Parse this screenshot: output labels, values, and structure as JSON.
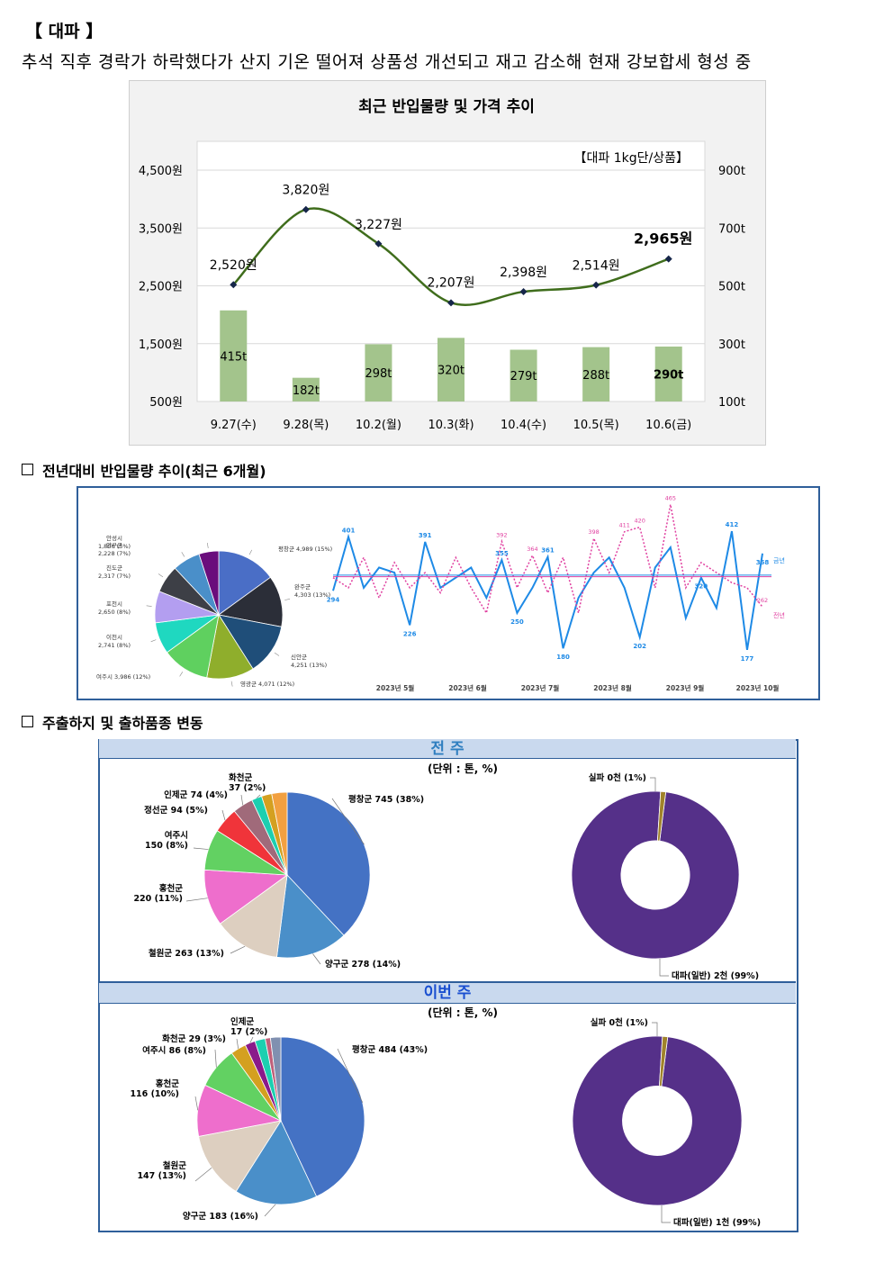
{
  "page": {
    "heading": "【 대파 】",
    "subtitle": "추석 직후 경락가 하락했다가 산지 기온 떨어져 상품성 개선되고 재고 감소해 현재 강보합세 형성 중"
  },
  "colors": {
    "bar": "#a3c48c",
    "line": "#3f6d1c",
    "pie_blue": "#4472c4",
    "donut_purple": "#553089",
    "band": "#c9d9ee"
  },
  "chart_data": [
    {
      "type": "bar",
      "title": "최근 반입물량 및 가격 추이",
      "note": "【대파 1kg단/상품】",
      "categories": [
        "9.27(수)",
        "9.28(목)",
        "10.2(월)",
        "10.3(화)",
        "10.4(수)",
        "10.5(목)",
        "10.6(금)"
      ],
      "series": [
        {
          "type": "bar",
          "axis": "right",
          "values": [
            415,
            182,
            298,
            320,
            279,
            288,
            290
          ],
          "labels": [
            "415t",
            "182t",
            "298t",
            "320t",
            "279t",
            "288t",
            "290t"
          ]
        },
        {
          "type": "line",
          "axis": "left",
          "values": [
            2520,
            3820,
            3227,
            2207,
            2398,
            2514,
            2965
          ],
          "labels": [
            "2,520원",
            "3,820원",
            "3,227원",
            "2,207원",
            "2,398원",
            "2,514원",
            "2,965원"
          ]
        }
      ],
      "left_axis": {
        "ylim": [
          500,
          4500
        ],
        "ticks": [
          "500원",
          "1,500원",
          "2,500원",
          "3,500원",
          "4,500원"
        ]
      },
      "right_axis": {
        "ylim": [
          100,
          900
        ],
        "ticks": [
          "100t",
          "300t",
          "500t",
          "700t",
          "900t"
        ]
      },
      "grid": true
    },
    {
      "type": "pie",
      "slices": [
        {
          "label": "평창군 4,989 (15%)",
          "value": 15,
          "color": "#4a6ec6"
        },
        {
          "label": "완주군 4,303 (13%)",
          "value": 13,
          "color": "#2b2e38"
        },
        {
          "label": "신안군 4,251 (13%)",
          "value": 13,
          "color": "#1f4e79"
        },
        {
          "label": "영광군 4,071 (12%)",
          "value": 12,
          "color": "#8fae2c"
        },
        {
          "label": "여주시 3,986 (12%)",
          "value": 12,
          "color": "#5fd05f"
        },
        {
          "label": "이천시 2,741 (8%)",
          "value": 8,
          "color": "#1fd8c0"
        },
        {
          "label": "포천시 2,650 (8%)",
          "value": 8,
          "color": "#b39ef0"
        },
        {
          "label": "진도군 2,317 (7%)",
          "value": 7,
          "color": "#3d3f46"
        },
        {
          "label": "양구군 2,228 (7%)",
          "value": 7,
          "color": "#4a8fc9"
        },
        {
          "label": "안성시 1,806 (5%)",
          "value": 5,
          "color": "#6a0d7c"
        }
      ]
    },
    {
      "type": "line",
      "x_ticks": [
        "2023년 5월",
        "2023년 6월",
        "2023년 7월",
        "2023년 8월",
        "2023년 9월",
        "2023년 10월"
      ],
      "series": [
        {
          "name": "금년",
          "color": "#1e8ae6",
          "values": [
            294,
            401,
            300,
            340,
            330,
            226,
            391,
            300,
            320,
            340,
            280,
            355,
            250,
            300,
            361,
            180,
            280,
            330,
            360,
            300,
            202,
            340,
            380,
            240,
            320,
            260,
            412,
            177,
            368
          ]
        },
        {
          "name": "전년",
          "color": "#e040a0",
          "values": [
            320,
            300,
            360,
            280,
            350,
            300,
            330,
            290,
            360,
            300,
            250,
            392,
            300,
            364,
            290,
            360,
            250,
            398,
            330,
            411,
            420,
            300,
            465,
            300,
            350,
            330,
            310,
            300,
            262
          ]
        }
      ],
      "point_labels": [
        "401",
        "391",
        "355",
        "361",
        "412",
        "294",
        "226",
        "264",
        "180",
        "202",
        "290",
        "177",
        "368",
        "392",
        "364",
        "398",
        "411",
        "420",
        "465",
        "262"
      ]
    },
    {
      "type": "pie",
      "unit": "(단위 : 톤, %)",
      "slices": [
        {
          "label": "평창군 745 (38%)",
          "value": 38,
          "color": "#4472c4"
        },
        {
          "label": "양구군 278 (14%)",
          "value": 14,
          "color": "#4a8fc9"
        },
        {
          "label": "철원군 263 (13%)",
          "value": 13,
          "color": "#ddcfc0"
        },
        {
          "label": "홍천군 220 (11%)",
          "value": 11,
          "color": "#ee6ecc"
        },
        {
          "label": "여주시 150 (8%)",
          "value": 8,
          "color": "#62d162"
        },
        {
          "label": "정선군 94 (5%)",
          "value": 5,
          "color": "#f0343a"
        },
        {
          "label": "인제군 74 (4%)",
          "value": 4,
          "color": "#a06a7a"
        },
        {
          "label": "화천군 37 (2%)",
          "value": 2,
          "color": "#1ccfb0"
        },
        {
          "label": "",
          "value": 2,
          "color": "#d4a020"
        },
        {
          "label": "",
          "value": 3,
          "color": "#f2a040"
        }
      ]
    },
    {
      "type": "pie",
      "slices": [
        {
          "label": "대파(일반) 2천 (99%)",
          "value": 99,
          "color": "#553089"
        },
        {
          "label": "실파 0천 (1%)",
          "value": 1,
          "color": "#a0822a"
        }
      ]
    },
    {
      "type": "pie",
      "unit": "(단위 : 톤, %)",
      "slices": [
        {
          "label": "평창군 484 (43%)",
          "value": 43,
          "color": "#4472c4"
        },
        {
          "label": "양구군 183 (16%)",
          "value": 16,
          "color": "#4a8fc9"
        },
        {
          "label": "철원군 147 (13%)",
          "value": 13,
          "color": "#ddcfc0"
        },
        {
          "label": "홍천군 116 (10%)",
          "value": 10,
          "color": "#ee6ecc"
        },
        {
          "label": "여주시 86 (8%)",
          "value": 8,
          "color": "#62d162"
        },
        {
          "label": "화천군 29 (3%)",
          "value": 3,
          "color": "#d4a020"
        },
        {
          "label": "인제군 17 (2%)",
          "value": 2,
          "color": "#8a1a8a"
        },
        {
          "label": "",
          "value": 2,
          "color": "#1ccfb0"
        },
        {
          "label": "",
          "value": 1,
          "color": "#c0607a"
        },
        {
          "label": "",
          "value": 2,
          "color": "#8090b0"
        }
      ]
    },
    {
      "type": "pie",
      "slices": [
        {
          "label": "대파(일반) 1천 (99%)",
          "value": 99,
          "color": "#553089"
        },
        {
          "label": "실파 0천 (1%)",
          "value": 1,
          "color": "#a0822a"
        }
      ]
    }
  ],
  "sections": {
    "yoy": "전년대비 반입물량 추이(최근 6개월)",
    "origins": "주출하지 및 출하품종 변동",
    "last_week": "전 주",
    "this_week": "이번 주"
  }
}
